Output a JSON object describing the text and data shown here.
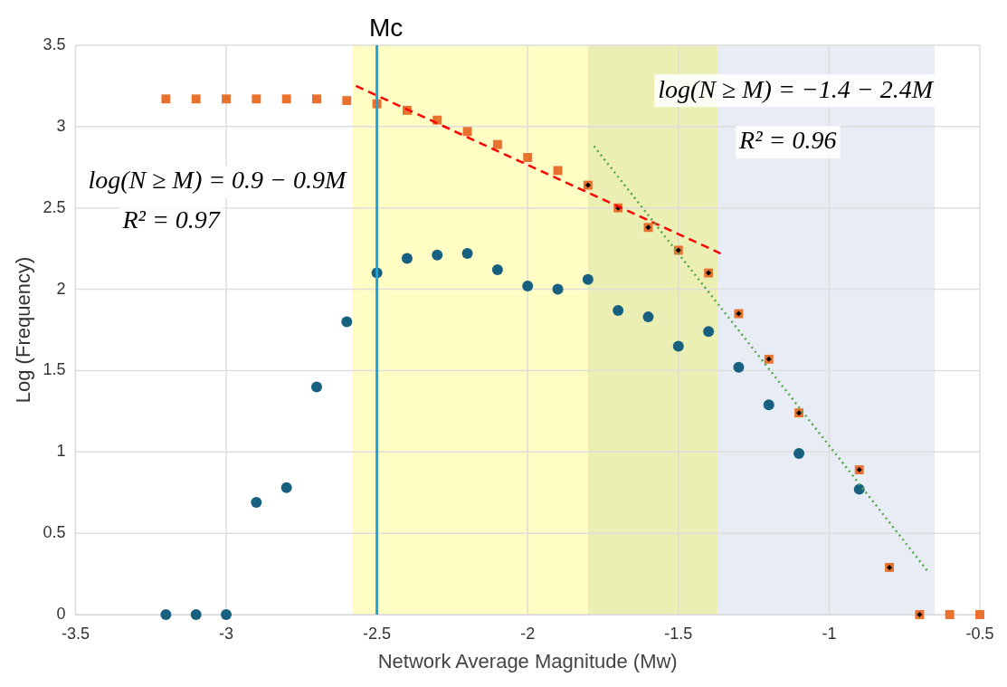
{
  "chart_data": {
    "type": "scatter",
    "xlabel": "Network Average Magnitude (Mw)",
    "ylabel": "Log (Frequency)",
    "xlim": [
      -3.5,
      -0.5
    ],
    "xticks": [
      -3.5,
      -3,
      -2.5,
      -2,
      -1.5,
      -1,
      -0.5
    ],
    "ylim": [
      0,
      3.5
    ],
    "yticks": [
      0,
      0.5,
      1,
      1.5,
      2,
      2.5,
      3,
      3.5
    ],
    "grid": true,
    "bands": [
      {
        "axis": "x",
        "from": -2.58,
        "to": -1.8,
        "color": "#fffcc4"
      },
      {
        "axis": "x",
        "from": -1.8,
        "to": -1.37,
        "color": "#ecefb4"
      },
      {
        "axis": "x",
        "from": -1.37,
        "to": -0.65,
        "color": "#e8edf5"
      }
    ],
    "ref_lines": [
      {
        "axis": "x",
        "value": -2.5,
        "label": "Mc",
        "color": "#1ba3dd",
        "line_style": "solid"
      }
    ],
    "series": [
      {
        "marker": "square",
        "color": "#e8712e",
        "x": [
          -3.2,
          -3.1,
          -3.0,
          -2.9,
          -2.8,
          -2.7,
          -2.6,
          -2.5,
          -2.4,
          -2.3,
          -2.2,
          -2.1,
          -2.0,
          -1.9,
          -1.8,
          -1.7,
          -1.6,
          -1.5,
          -1.4,
          -1.3,
          -1.2,
          -1.1,
          -0.9,
          -0.8,
          -0.7,
          -0.6,
          -0.5
        ],
        "values": [
          3.17,
          3.17,
          3.17,
          3.17,
          3.17,
          3.17,
          3.16,
          3.14,
          3.1,
          3.04,
          2.97,
          2.89,
          2.81,
          2.73,
          2.64,
          2.5,
          2.38,
          2.24,
          2.1,
          1.85,
          1.57,
          1.24,
          0.89,
          0.29,
          0,
          0,
          0
        ]
      },
      {
        "marker": "circle",
        "color": "#17607f",
        "x": [
          -3.2,
          -3.1,
          -3.0,
          -2.9,
          -2.8,
          -2.7,
          -2.6,
          -2.5,
          -2.4,
          -2.3,
          -2.2,
          -2.1,
          -2.0,
          -1.9,
          -1.8,
          -1.7,
          -1.6,
          -1.5,
          -1.4,
          -1.3,
          -1.2,
          -1.1,
          -0.9
        ],
        "values": [
          0,
          0,
          0,
          0.69,
          0.78,
          1.4,
          1.8,
          2.1,
          2.19,
          2.21,
          2.22,
          2.12,
          2.02,
          2.0,
          2.06,
          1.87,
          1.83,
          1.65,
          1.74,
          1.52,
          1.29,
          0.99,
          0.77
        ]
      },
      {
        "marker": "diamond",
        "color": "#000000",
        "x": [
          -1.8,
          -1.7,
          -1.6,
          -1.5,
          -1.4,
          -1.3,
          -1.2,
          -1.1,
          -0.9,
          -0.8,
          -0.7
        ],
        "values": [
          2.64,
          2.5,
          2.38,
          2.24,
          2.1,
          1.85,
          1.57,
          1.24,
          0.89,
          0.29,
          0
        ]
      },
      {
        "type": "line",
        "marker": "none",
        "line_style": "dashed",
        "color": "#ff0000",
        "x": [
          -2.57,
          -1.36
        ],
        "values": [
          3.25,
          2.22
        ]
      },
      {
        "type": "line",
        "marker": "none",
        "line_style": "dotted",
        "color": "#5aa64e",
        "x": [
          -1.78,
          -0.67
        ],
        "values": [
          2.88,
          0.26
        ]
      }
    ],
    "annotations": [
      "log(N ≥ M) = 0.9 − 0.9M",
      "R² = 0.97",
      "log(N ≥ M) = −1.4 − 2.4M",
      "R² = 0.96"
    ]
  }
}
